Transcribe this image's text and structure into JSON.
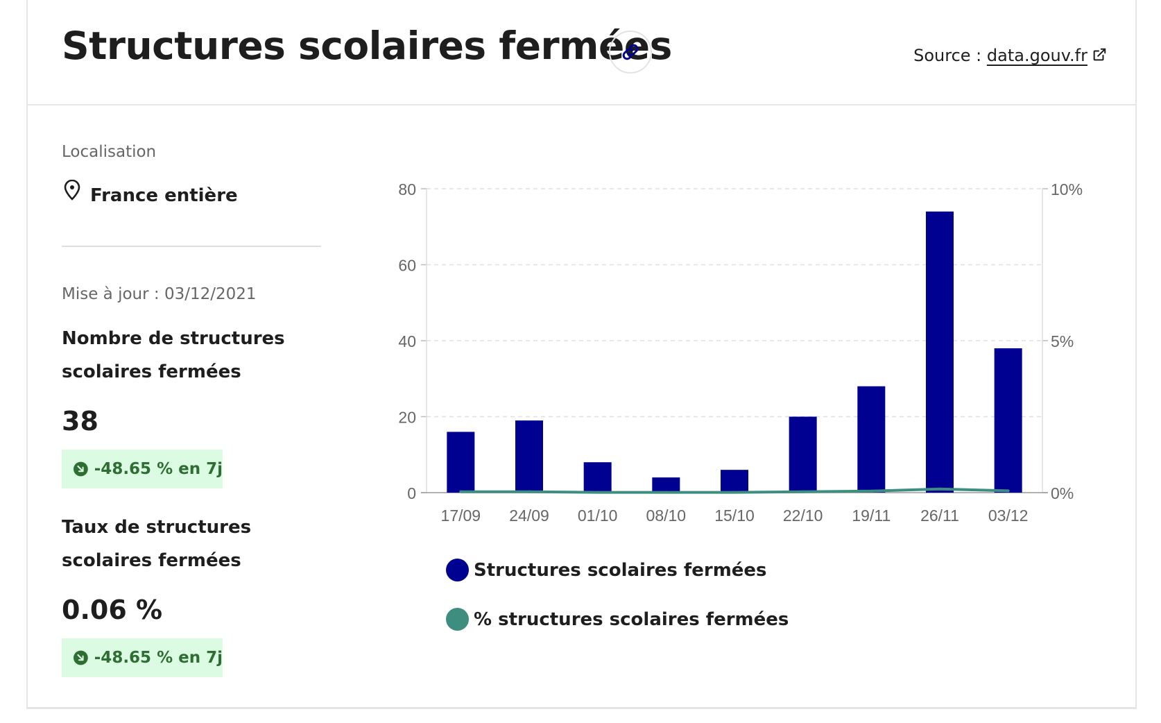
{
  "header": {
    "title": "Structures scolaires fermées",
    "source_prefix": "Source : ",
    "source_link": "data.gouv.fr",
    "link_icon": "link-icon",
    "external_icon": "external-link-icon"
  },
  "sidebar": {
    "location_label": "Localisation",
    "location_icon": "map-pin-icon",
    "location_value": "France entière",
    "update_text": "Mise à jour : 03/12/2021",
    "kpis": [
      {
        "label": "Nombre de structures scolaires fermées",
        "value": "38",
        "trend": "-48.65 % en 7j",
        "trend_icon": "arrow-down-right-icon"
      },
      {
        "label": "Taux de structures scolaires fermées",
        "value": "0.06 %",
        "trend": "-48.65 % en 7j",
        "trend_icon": "arrow-down-right-icon"
      }
    ]
  },
  "colors": {
    "bars": "#000091",
    "line": "#3e8e80",
    "badge_bg": "#dcfbe3",
    "badge_text": "#2f6e33"
  },
  "chart_data": {
    "type": "bar",
    "categories": [
      "17/09",
      "24/09",
      "01/10",
      "08/10",
      "15/10",
      "22/10",
      "19/11",
      "26/11",
      "03/12"
    ],
    "series": [
      {
        "name": "Structures scolaires fermées",
        "type": "bar",
        "axis": "left",
        "values": [
          16,
          19,
          8,
          4,
          6,
          20,
          28,
          74,
          38
        ]
      },
      {
        "name": "% structures scolaires fermées",
        "type": "line",
        "axis": "right",
        "values": [
          0.03,
          0.03,
          0.01,
          0.01,
          0.01,
          0.03,
          0.05,
          0.12,
          0.06
        ]
      }
    ],
    "y_left": {
      "ticks": [
        "0",
        "20",
        "40",
        "60",
        "80"
      ],
      "range": [
        0,
        80
      ]
    },
    "y_right": {
      "ticks": [
        "0%",
        "5%",
        "10%"
      ],
      "range": [
        0,
        10
      ]
    },
    "grid": true,
    "legend_position": "bottom-left"
  }
}
